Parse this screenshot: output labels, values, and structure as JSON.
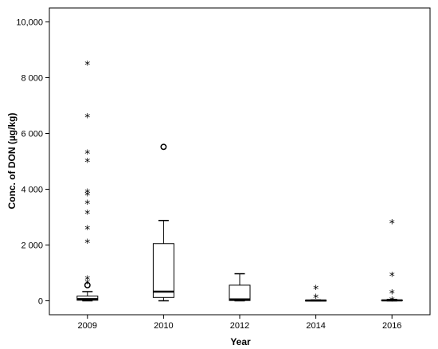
{
  "chart_data": {
    "type": "boxplot",
    "xlabel": "Year",
    "ylabel": "Conc. of DON (µg/kg)",
    "ylim": [
      -500,
      10500
    ],
    "yticks": [
      0,
      2000,
      4000,
      6000,
      8000,
      10000
    ],
    "ytick_labels": [
      "0",
      "2 000",
      "4 000",
      "6 000",
      "8 000",
      "10,000"
    ],
    "categories": [
      "2009",
      "2010",
      "2012",
      "2014",
      "2016"
    ],
    "boxes": [
      {
        "category": "2009",
        "whisker_low": 0,
        "q1": 20,
        "median": 60,
        "q3": 170,
        "whisker_high": 330
      },
      {
        "category": "2010",
        "whisker_low": 0,
        "q1": 120,
        "median": 330,
        "q3": 2050,
        "whisker_high": 2880
      },
      {
        "category": "2012",
        "whisker_low": 0,
        "q1": 10,
        "median": 50,
        "q3": 560,
        "whisker_high": 970
      },
      {
        "category": "2014",
        "whisker_low": 0,
        "q1": 0,
        "median": 10,
        "q3": 20,
        "whisker_high": 30
      },
      {
        "category": "2016",
        "whisker_low": 0,
        "q1": 0,
        "median": 15,
        "q3": 30,
        "whisker_high": 50
      }
    ],
    "outliers": [
      {
        "category": "2009",
        "value": 560,
        "marker": "circle"
      },
      {
        "category": "2009",
        "value": 650,
        "marker": "star"
      },
      {
        "category": "2009",
        "value": 780,
        "marker": "star"
      },
      {
        "category": "2009",
        "value": 2100,
        "marker": "star"
      },
      {
        "category": "2009",
        "value": 2580,
        "marker": "star"
      },
      {
        "category": "2009",
        "value": 3150,
        "marker": "star"
      },
      {
        "category": "2009",
        "value": 3500,
        "marker": "star"
      },
      {
        "category": "2009",
        "value": 3800,
        "marker": "star"
      },
      {
        "category": "2009",
        "value": 3900,
        "marker": "star"
      },
      {
        "category": "2009",
        "value": 5000,
        "marker": "star"
      },
      {
        "category": "2009",
        "value": 5300,
        "marker": "star"
      },
      {
        "category": "2009",
        "value": 6600,
        "marker": "star"
      },
      {
        "category": "2009",
        "value": 8480,
        "marker": "star"
      },
      {
        "category": "2010",
        "value": 5520,
        "marker": "circle"
      },
      {
        "category": "2014",
        "value": 130,
        "marker": "star"
      },
      {
        "category": "2014",
        "value": 450,
        "marker": "star"
      },
      {
        "category": "2016",
        "value": 30,
        "marker": "star"
      },
      {
        "category": "2016",
        "value": 290,
        "marker": "star"
      },
      {
        "category": "2016",
        "value": 920,
        "marker": "star"
      },
      {
        "category": "2016",
        "value": 2800,
        "marker": "star"
      }
    ],
    "grid": false,
    "colors": {
      "box_fill": "#ffffff",
      "line": "#000000",
      "background": "#ffffff"
    }
  }
}
